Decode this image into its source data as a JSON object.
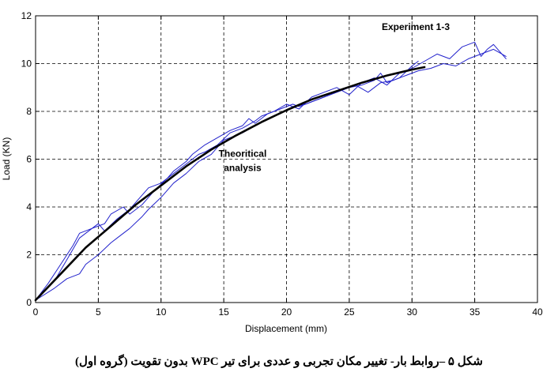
{
  "chart_data": {
    "type": "line",
    "title": "",
    "xlabel": "Displacement (mm)",
    "ylabel": "Load (KN)",
    "xlim": [
      0,
      40
    ],
    "ylim": [
      0,
      12
    ],
    "xticks": [
      0,
      5,
      10,
      15,
      20,
      25,
      30,
      35,
      40
    ],
    "yticks": [
      0,
      2,
      4,
      6,
      8,
      10,
      12
    ],
    "grid": true,
    "grid_style": "dashed",
    "annotations": [
      {
        "text": "Experiment 1-3",
        "x": 30.3,
        "y": 11.4
      },
      {
        "text": "Theoritical",
        "x": 16.5,
        "y": 6.1
      },
      {
        "text": "analysis",
        "x": 16.5,
        "y": 5.5
      }
    ],
    "series": [
      {
        "color": "#000000",
        "style": "thick",
        "x": [
          0,
          2,
          4,
          6,
          8,
          10,
          12,
          14,
          16,
          18,
          20,
          22,
          24,
          26,
          28,
          30,
          31
        ],
        "y": [
          0.1,
          1.2,
          2.3,
          3.2,
          4.1,
          4.9,
          5.7,
          6.4,
          7.0,
          7.55,
          8.05,
          8.5,
          8.85,
          9.2,
          9.5,
          9.75,
          9.85
        ]
      },
      {
        "color": "#2222cc",
        "style": "thin",
        "x": [
          0,
          1,
          2,
          3,
          3.5,
          4.5,
          5.5,
          6,
          7,
          7.5,
          8.5,
          9.5,
          10.5,
          11,
          12,
          12.5,
          13.5,
          14.5,
          15.5,
          16.5,
          17,
          17.5,
          18.5,
          19.5,
          20.5,
          21,
          22,
          23,
          24,
          25,
          26,
          27,
          27.5,
          28,
          29,
          30,
          30.5
        ],
        "y": [
          0.1,
          0.8,
          1.6,
          2.4,
          2.9,
          3.1,
          3.3,
          3.7,
          4.0,
          3.7,
          4.1,
          4.7,
          5.2,
          5.5,
          5.9,
          6.2,
          6.6,
          6.9,
          7.2,
          7.4,
          7.7,
          7.5,
          7.9,
          8.1,
          8.3,
          8.2,
          8.4,
          8.6,
          8.8,
          9.0,
          9.1,
          9.3,
          9.6,
          9.2,
          9.4,
          9.9,
          10.1
        ]
      },
      {
        "color": "#2222cc",
        "style": "thin",
        "x": [
          0,
          1.5,
          2.5,
          3.5,
          4.5,
          5,
          5.5,
          6.5,
          7.5,
          8,
          9,
          10,
          11,
          12,
          13,
          13.5,
          14.5,
          15.5,
          16.5,
          17.5,
          18,
          19,
          20,
          21,
          22,
          23,
          24,
          25,
          26,
          27,
          28,
          29,
          30,
          31,
          32,
          33,
          34,
          35,
          35.5,
          36,
          36.5,
          37,
          37.5
        ],
        "y": [
          0.1,
          0.9,
          1.8,
          2.7,
          3.1,
          3.3,
          3.0,
          3.5,
          3.9,
          4.2,
          4.8,
          5.0,
          5.4,
          5.8,
          6.2,
          6.3,
          6.6,
          7.1,
          7.3,
          7.6,
          7.8,
          8.0,
          8.3,
          8.1,
          8.6,
          8.8,
          9.0,
          8.7,
          9.2,
          9.4,
          9.1,
          9.6,
          9.8,
          10.1,
          10.4,
          10.2,
          10.7,
          10.9,
          10.3,
          10.6,
          10.8,
          10.5,
          10.2
        ]
      },
      {
        "color": "#2222cc",
        "style": "thin",
        "x": [
          0,
          1.5,
          2.5,
          3.5,
          4,
          5,
          6,
          6.5,
          7.5,
          8.5,
          9,
          10,
          11,
          12,
          13,
          14,
          15,
          15.5,
          16.5,
          17.5,
          18.5,
          19.5,
          20.5,
          21.5,
          22.5,
          23.5,
          24.5,
          25.5,
          26.5,
          27.5,
          28.5,
          29.5,
          30.5,
          31.5,
          32.5,
          33.5,
          34.5,
          35.5,
          36.5,
          37.5
        ],
        "y": [
          0.1,
          0.6,
          1.0,
          1.2,
          1.6,
          2.0,
          2.5,
          2.7,
          3.1,
          3.6,
          3.9,
          4.4,
          5.0,
          5.4,
          5.9,
          6.2,
          6.8,
          6.9,
          7.1,
          7.4,
          7.7,
          7.9,
          8.2,
          8.3,
          8.5,
          8.7,
          8.9,
          9.1,
          8.8,
          9.2,
          9.3,
          9.5,
          9.7,
          9.8,
          10.0,
          9.9,
          10.2,
          10.4,
          10.6,
          10.3
        ]
      }
    ]
  },
  "caption": "شکل ۵ –روابط بار- تغییر مکان تجربی و عددی برای تیر WPC بدون تقویت (گروه اول)"
}
